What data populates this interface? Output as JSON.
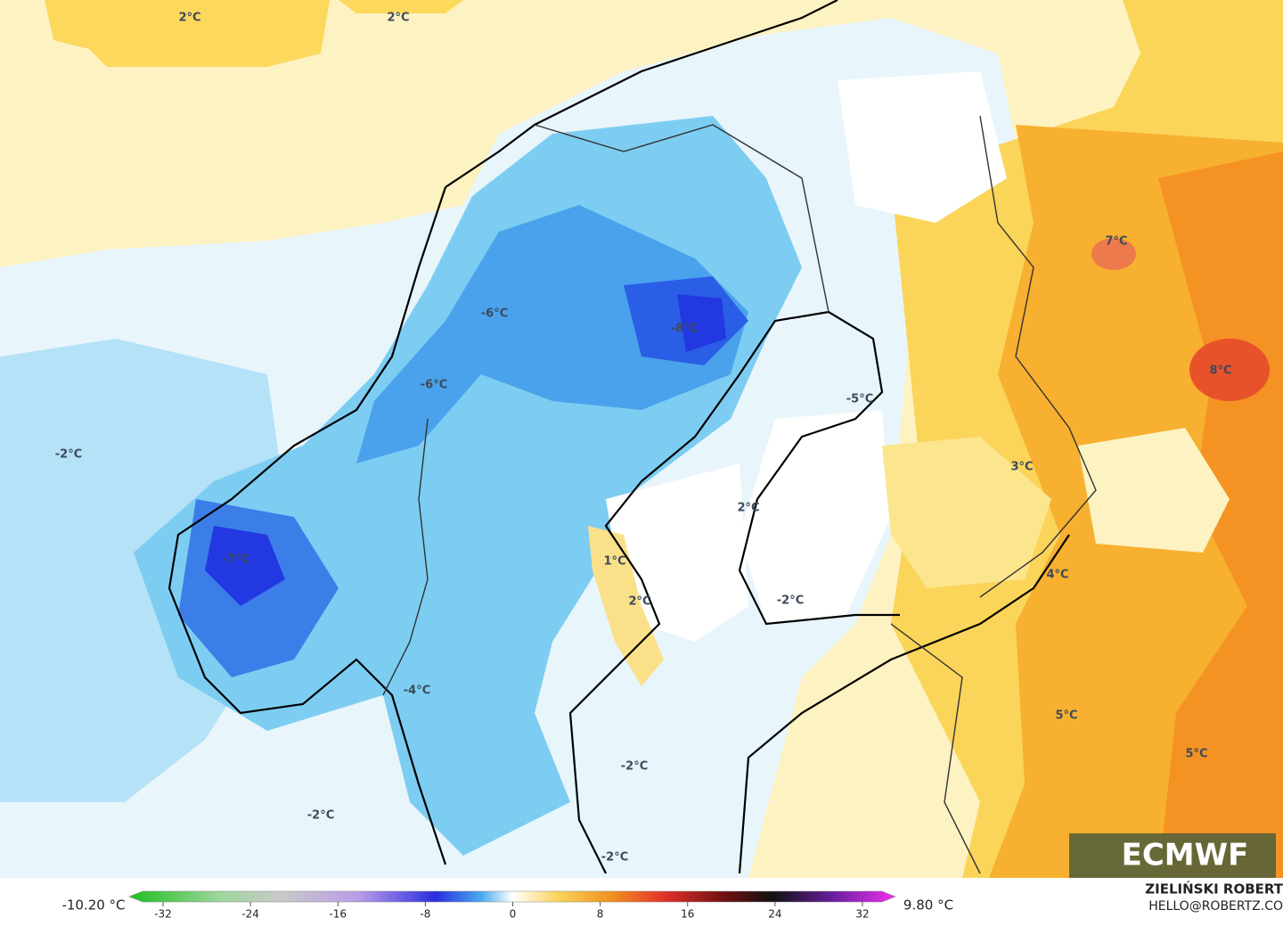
{
  "map_labels": [
    "2°C",
    "2°C",
    "-2°C",
    "-6°C",
    "-8°C",
    "-6°C",
    "-5°C",
    "7°C",
    "8°C",
    "3°C",
    "2°C",
    "1°C",
    "-7°C",
    "4°C",
    "2°C",
    "-2°C",
    "-4°C",
    "5°C",
    "5°C",
    "-2°C",
    "-2°C",
    "-2°C"
  ],
  "colorbar": {
    "min_label": "-10.20 °C",
    "max_label": "9.80 °C",
    "ticks": [
      "-32",
      "-24",
      "-16",
      "-8",
      "0",
      "8",
      "16",
      "24",
      "32"
    ]
  },
  "credit": {
    "author": "ZIELIŃSKI ROBERT",
    "contact": "HELLO@ROBERTZ.CO"
  },
  "logo": "ECMWF"
}
